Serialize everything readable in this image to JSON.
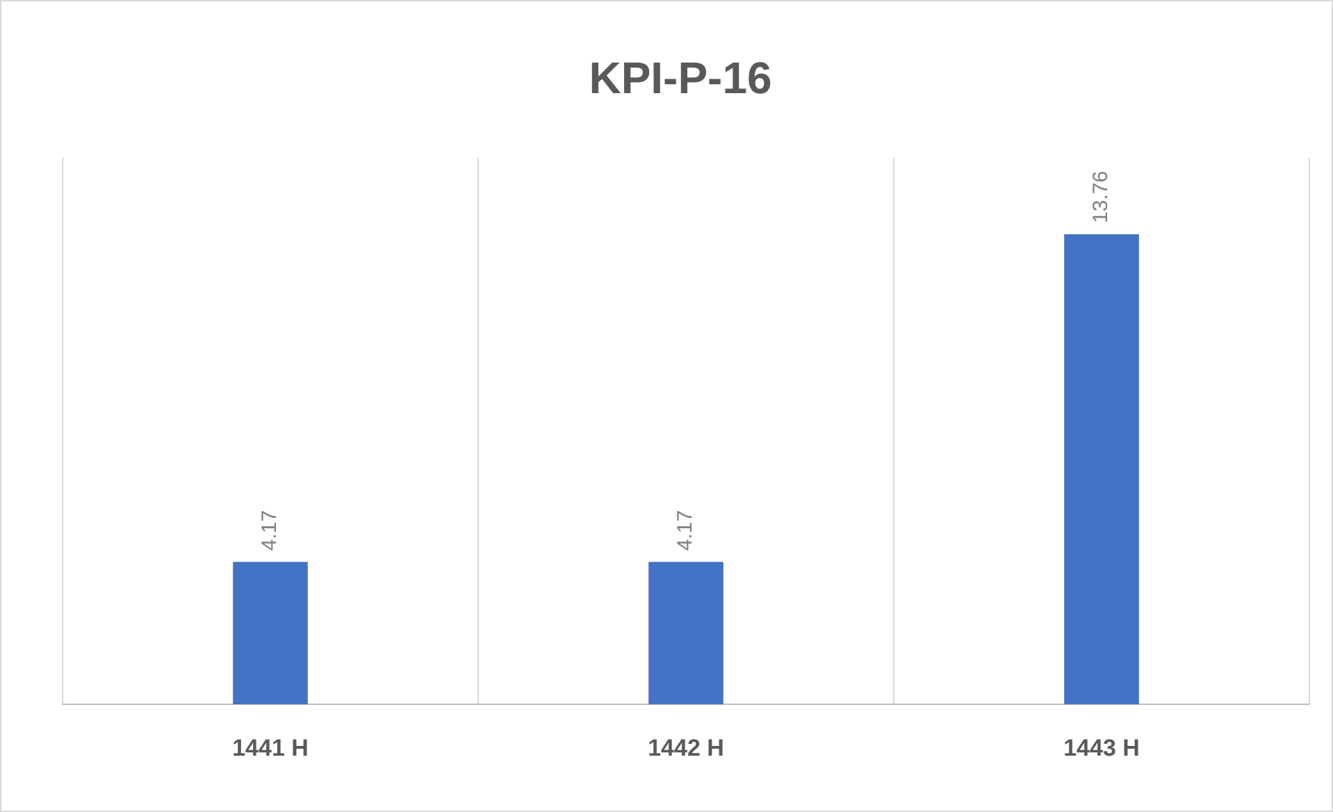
{
  "chart_data": {
    "type": "bar",
    "title": "KPI-P-16",
    "categories": [
      "1441 H",
      "1442 H",
      "1443 H"
    ],
    "values": [
      4.17,
      4.17,
      13.76
    ],
    "color": "#4472c4",
    "data_labels": true,
    "grid": "x",
    "legend": false,
    "relative": false
  }
}
